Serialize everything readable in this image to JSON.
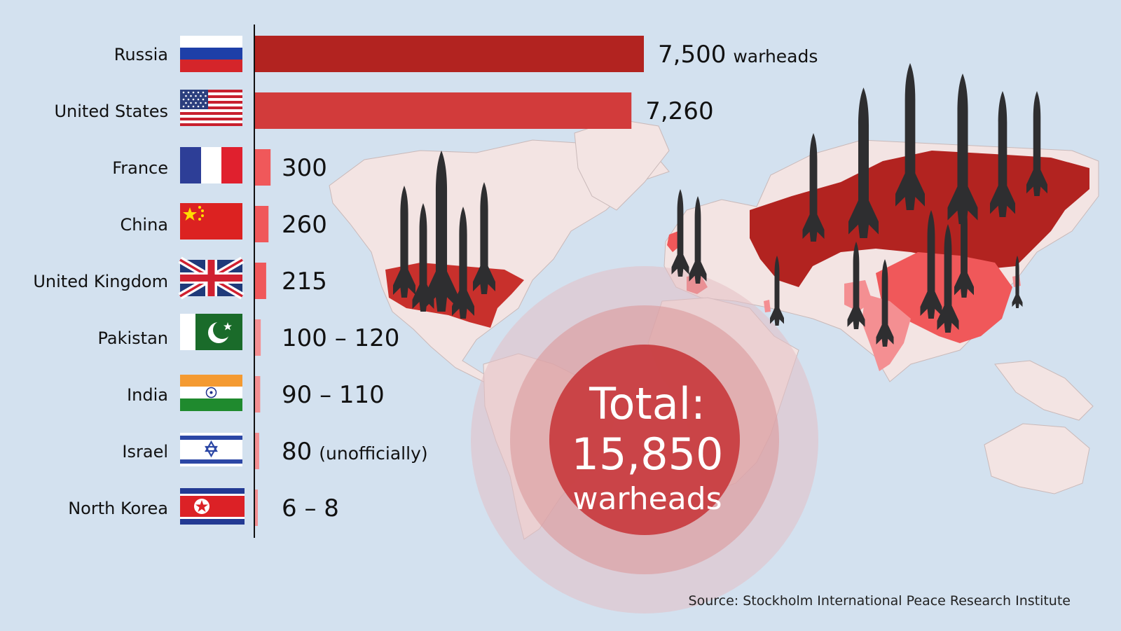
{
  "chart_data": {
    "type": "bar",
    "orientation": "horizontal",
    "categories": [
      "Russia",
      "United States",
      "France",
      "China",
      "United Kingdom",
      "Pakistan",
      "India",
      "Israel",
      "North Korea"
    ],
    "values": [
      7500,
      7260,
      300,
      260,
      215,
      110,
      100,
      80,
      7
    ],
    "value_labels": [
      "7,500",
      "7,260",
      "300",
      "260",
      "215",
      "100 – 120",
      "90 – 110",
      "80",
      "6 – 8"
    ],
    "value_suffixes": [
      "warheads",
      "",
      "",
      "",
      "",
      "",
      "",
      "(unofficially)",
      ""
    ],
    "bar_colors": [
      "#b22320",
      "#d23b3b",
      "#f0585a",
      "#f0585a",
      "#f0585a",
      "#f48f92",
      "#f48f92",
      "#f48f92",
      "#f48f92"
    ],
    "xlim": [
      0,
      7500
    ],
    "total": {
      "line1": "Total:",
      "line2": "15,850",
      "line3": "warheads"
    },
    "source": "Source: Stockholm International Peace Research Institute"
  },
  "flag_icons": [
    "russia-flag-icon",
    "usa-flag-icon",
    "france-flag-icon",
    "china-flag-icon",
    "uk-flag-icon",
    "pakistan-flag-icon",
    "india-flag-icon",
    "israel-flag-icon",
    "north-korea-flag-icon"
  ],
  "background_map": "world-map-icon",
  "missile_icon": "missile-icon",
  "colors": {
    "background": "#d3e1ef",
    "land": "#f3e4e3",
    "russia": "#b22320",
    "usa": "#c8302c",
    "tier3": "#f0585a",
    "tier4": "#f48f92",
    "missile": "#2e2e30"
  }
}
